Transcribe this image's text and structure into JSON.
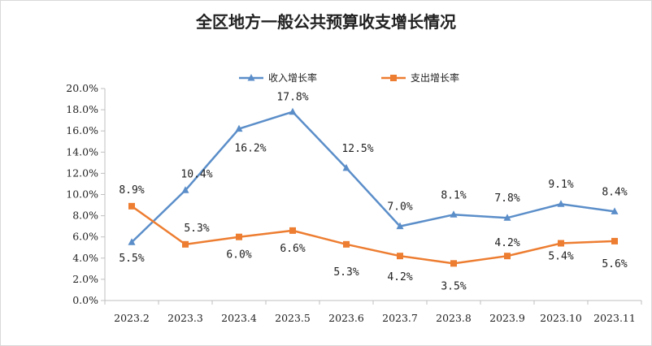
{
  "chart_data": {
    "type": "line",
    "title": "全区地方一般公共预算收支增长情况",
    "categories": [
      "2023.2",
      "2023.3",
      "2023.4",
      "2023.5",
      "2023.6",
      "2023.7",
      "2023.8",
      "2023.9",
      "2023.10",
      "2023.11"
    ],
    "series": [
      {
        "name": "收入增长率",
        "color": "#5b8ec9",
        "marker": "triangle",
        "values": [
          5.5,
          10.4,
          16.2,
          17.8,
          12.5,
          7.0,
          8.1,
          7.8,
          9.1,
          8.4
        ],
        "labels": [
          "5.5%",
          "10.4%",
          "16.2%",
          "17.8%",
          "12.5%",
          "7.0%",
          "8.1%",
          "7.8%",
          "9.1%",
          "8.4%"
        ]
      },
      {
        "name": "支出增长率",
        "color": "#ed7d31",
        "marker": "square",
        "values": [
          8.9,
          5.3,
          6.0,
          6.6,
          5.3,
          4.2,
          3.5,
          4.2,
          5.4,
          5.6
        ],
        "labels": [
          "8.9%",
          "5.3%",
          "6.0%",
          "6.6%",
          "5.3%",
          "4.2%",
          "3.5%",
          "4.2%",
          "5.4%",
          "5.6%"
        ]
      }
    ],
    "ylim": [
      0,
      20
    ],
    "yticks": [
      "0.0%",
      "2.0%",
      "4.0%",
      "6.0%",
      "8.0%",
      "10.0%",
      "12.0%",
      "14.0%",
      "16.0%",
      "18.0%",
      "20.0%"
    ],
    "ytick_values": [
      0,
      2,
      4,
      6,
      8,
      10,
      12,
      14,
      16,
      18,
      20
    ],
    "grid": false,
    "legend_position": "top-center"
  }
}
